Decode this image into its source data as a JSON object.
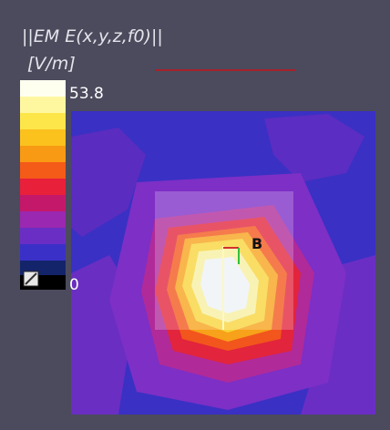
{
  "legend": {
    "title": "||EM E(x,y,z,f0)||",
    "unit": "[V/m]",
    "max": 53.8,
    "min": 0
  },
  "probe": {
    "label": "B"
  }
}
